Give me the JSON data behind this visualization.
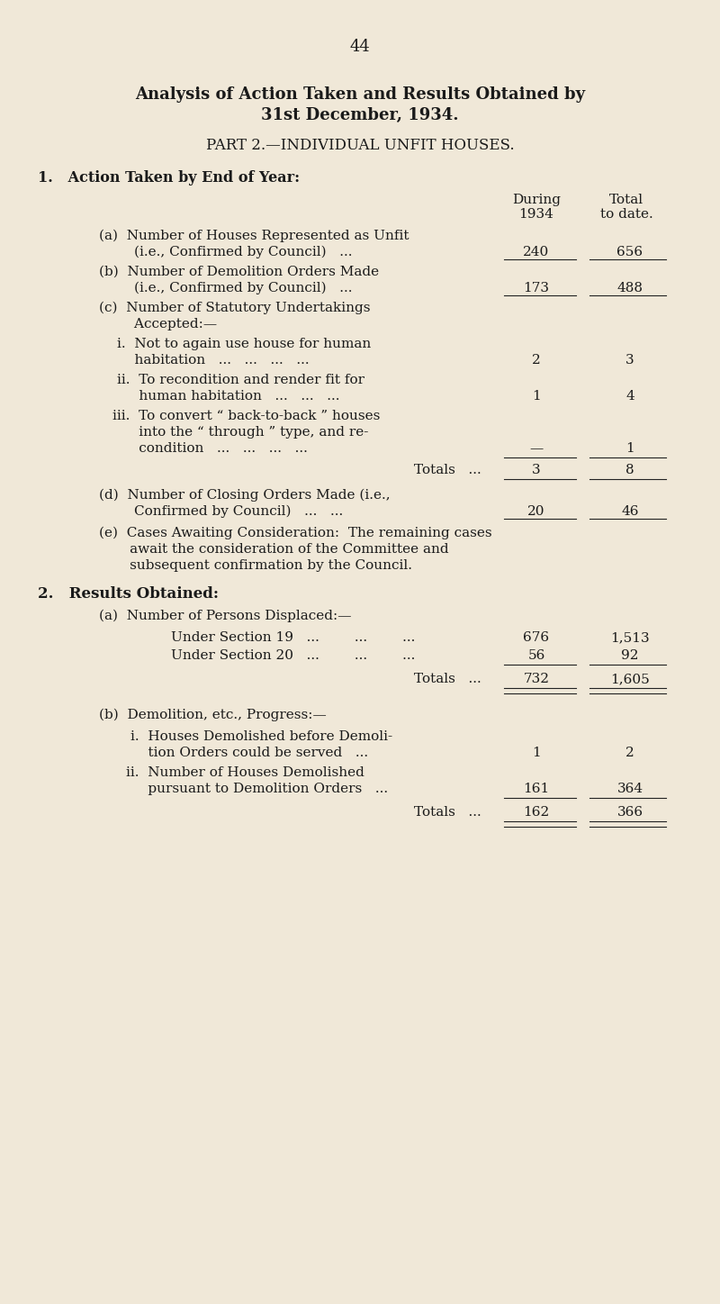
{
  "page_number": "44",
  "bg_color": "#f0e8d8",
  "title_line1": "Analysis of Action Taken and Results Obtained by",
  "title_line2": "31st December, 1934.",
  "subtitle": "PART 2.—INDIVIDUAL UNFIT HOUSES.",
  "section1_header": "1.   Action Taken by End of Year:",
  "col_header1": "During",
  "col_header2": "Total",
  "col_header3": "1934",
  "col_header4": "to date.",
  "rows": [
    {
      "label_lines": [
        "(a)  Number of Houses Represented as Unfit",
        "        (i.e., Confirmed by Council)   ..."
      ],
      "val1": "240",
      "val2": "656",
      "underline": true
    },
    {
      "label_lines": [
        "(b)  Number of Demolition Orders Made",
        "        (i.e., Confirmed by Council)   ..."
      ],
      "val1": "173",
      "val2": "488",
      "underline": true
    },
    {
      "label_lines": [
        "(c)  Number of Statutory Undertakings",
        "        Accepted:—"
      ],
      "val1": "",
      "val2": "",
      "underline": false
    },
    {
      "label_lines": [
        "           i.  Not to again use house for human",
        "               habitation   ...   ...   ...   ..."
      ],
      "val1": "2",
      "val2": "3",
      "underline": false
    },
    {
      "label_lines": [
        "          ii.  To recondition and render fit for",
        "               human habitation   ...   ...   ..."
      ],
      "val1": "1",
      "val2": "4",
      "underline": false
    },
    {
      "label_lines": [
        "         iii.  To convert “ back-to-back ” houses",
        "               into the “ through ” type, and re-",
        "               condition   ...   ...   ...   ..."
      ],
      "val1": "—",
      "val2": "1",
      "underline": false
    },
    {
      "label_lines": [
        "                                         Totals   ..."
      ],
      "val1": "3",
      "val2": "8",
      "underline": true,
      "pre_underline": true
    },
    {
      "label_lines": [
        "(d)  Number of Closing Orders Made (i.e.,",
        "        Confirmed by Council)   ...   ..."
      ],
      "val1": "20",
      "val2": "46",
      "underline": true
    },
    {
      "label_lines": [
        "(e)  Cases Awaiting Consideration:  The remaining cases",
        "       await the consideration of the Committee and",
        "       subsequent confirmation by the Council."
      ],
      "val1": "",
      "val2": "",
      "underline": false
    }
  ],
  "section2_header": "2.   Results Obtained:",
  "section2a_header": "      (a)  Number of Persons Displaced:—",
  "s2_rows": [
    {
      "label": "               Under Section 19   ...        ...        ...",
      "val1": "676",
      "val2": "1,513"
    },
    {
      "label": "               Under Section 20   ...        ...        ...",
      "val1": "56",
      "val2": "92"
    }
  ],
  "s2a_totals_label": "                                         Totals   ...",
  "s2a_totals_val1": "732",
  "s2a_totals_val2": "1,605",
  "section2b_header": "      (b)  Demolition, etc., Progress:—",
  "s2b_rows": [
    {
      "label_lines": [
        "            i.  Houses Demolished before Demoli-",
        "                tion Orders could be served   ..."
      ],
      "val1": "1",
      "val2": "2"
    },
    {
      "label_lines": [
        "           ii.  Number of Houses Demolished",
        "                pursuant to Demolition Orders   ..."
      ],
      "val1": "161",
      "val2": "364"
    }
  ],
  "s2b_totals_label": "                                         Totals   ...",
  "s2b_totals_val1": "162",
  "s2b_totals_val2": "366"
}
